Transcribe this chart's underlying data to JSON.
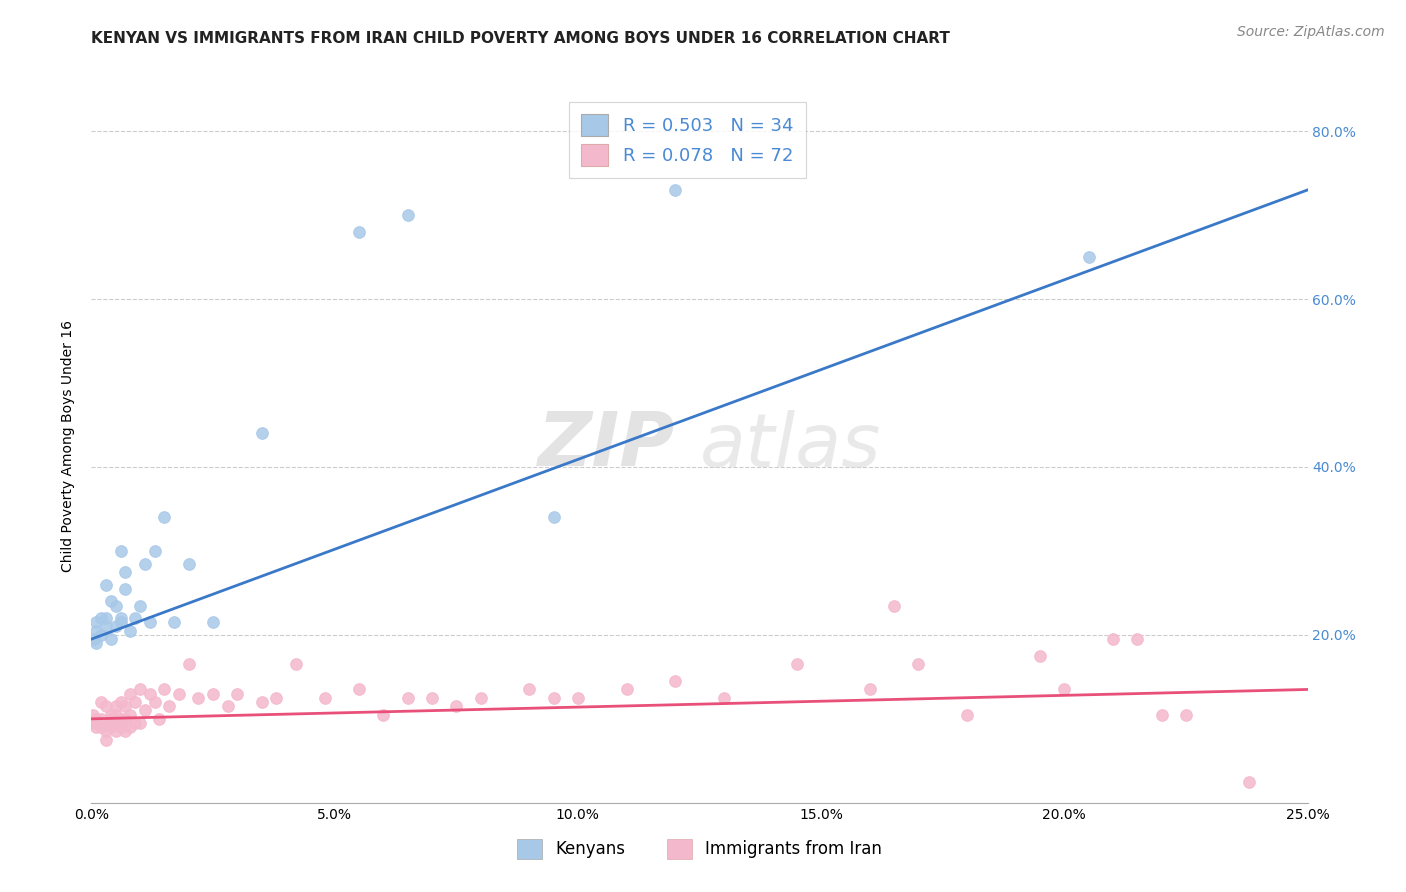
{
  "title": "KENYAN VS IMMIGRANTS FROM IRAN CHILD POVERTY AMONG BOYS UNDER 16 CORRELATION CHART",
  "source": "Source: ZipAtlas.com",
  "ylabel": "Child Poverty Among Boys Under 16",
  "xlim": [
    0.0,
    0.25
  ],
  "ylim": [
    0.0,
    0.85
  ],
  "xtick_labels": [
    "0.0%",
    "5.0%",
    "10.0%",
    "15.0%",
    "20.0%",
    "25.0%"
  ],
  "xtick_values": [
    0.0,
    0.05,
    0.1,
    0.15,
    0.2,
    0.25
  ],
  "ytick_values": [
    0.0,
    0.2,
    0.4,
    0.6,
    0.8
  ],
  "ytick_labels_right": [
    "",
    "20.0%",
    "40.0%",
    "60.0%",
    "80.0%"
  ],
  "blue_scatter_color": "#a8c8e8",
  "pink_scatter_color": "#f4b8cc",
  "blue_line_color": "#3a78c8",
  "pink_line_color": "#e8507a",
  "right_tick_color": "#4a8ad4",
  "R_blue": 0.503,
  "N_blue": 34,
  "R_pink": 0.078,
  "N_pink": 72,
  "watermark_zip": "ZIP",
  "watermark_atlas": "atlas",
  "legend_label_blue": "Kenyans",
  "legend_label_pink": "Immigrants from Iran",
  "blue_scatter_x": [
    0.0005,
    0.001,
    0.001,
    0.001,
    0.002,
    0.002,
    0.003,
    0.003,
    0.003,
    0.004,
    0.004,
    0.005,
    0.005,
    0.006,
    0.006,
    0.006,
    0.007,
    0.007,
    0.008,
    0.009,
    0.01,
    0.011,
    0.012,
    0.013,
    0.015,
    0.017,
    0.02,
    0.025,
    0.035,
    0.055,
    0.065,
    0.095,
    0.12,
    0.205
  ],
  "blue_scatter_y": [
    0.195,
    0.205,
    0.215,
    0.19,
    0.22,
    0.2,
    0.21,
    0.26,
    0.22,
    0.24,
    0.195,
    0.235,
    0.21,
    0.215,
    0.22,
    0.3,
    0.255,
    0.275,
    0.205,
    0.22,
    0.235,
    0.285,
    0.215,
    0.3,
    0.34,
    0.215,
    0.285,
    0.215,
    0.44,
    0.68,
    0.7,
    0.34,
    0.73,
    0.65
  ],
  "pink_scatter_x": [
    0.0003,
    0.0005,
    0.001,
    0.001,
    0.001,
    0.002,
    0.002,
    0.002,
    0.003,
    0.003,
    0.003,
    0.003,
    0.004,
    0.004,
    0.004,
    0.005,
    0.005,
    0.005,
    0.005,
    0.006,
    0.006,
    0.006,
    0.007,
    0.007,
    0.007,
    0.008,
    0.008,
    0.008,
    0.009,
    0.009,
    0.01,
    0.01,
    0.011,
    0.012,
    0.013,
    0.014,
    0.015,
    0.016,
    0.018,
    0.02,
    0.022,
    0.025,
    0.028,
    0.03,
    0.035,
    0.038,
    0.042,
    0.048,
    0.055,
    0.06,
    0.065,
    0.07,
    0.075,
    0.08,
    0.09,
    0.095,
    0.1,
    0.11,
    0.12,
    0.13,
    0.145,
    0.16,
    0.17,
    0.18,
    0.195,
    0.2,
    0.21,
    0.215,
    0.22,
    0.225,
    0.165,
    0.238
  ],
  "pink_scatter_y": [
    0.105,
    0.095,
    0.1,
    0.095,
    0.09,
    0.12,
    0.1,
    0.09,
    0.115,
    0.095,
    0.085,
    0.075,
    0.105,
    0.1,
    0.09,
    0.115,
    0.105,
    0.095,
    0.085,
    0.12,
    0.1,
    0.09,
    0.115,
    0.1,
    0.085,
    0.13,
    0.105,
    0.09,
    0.12,
    0.095,
    0.135,
    0.095,
    0.11,
    0.13,
    0.12,
    0.1,
    0.135,
    0.115,
    0.13,
    0.165,
    0.125,
    0.13,
    0.115,
    0.13,
    0.12,
    0.125,
    0.165,
    0.125,
    0.135,
    0.105,
    0.125,
    0.125,
    0.115,
    0.125,
    0.135,
    0.125,
    0.125,
    0.135,
    0.145,
    0.125,
    0.165,
    0.135,
    0.165,
    0.105,
    0.175,
    0.135,
    0.195,
    0.195,
    0.105,
    0.105,
    0.235,
    0.025
  ],
  "blue_trendline_x0": 0.0,
  "blue_trendline_y0": 0.195,
  "blue_trendline_x1": 0.25,
  "blue_trendline_y1": 0.73,
  "pink_trendline_x0": 0.0,
  "pink_trendline_y0": 0.1,
  "pink_trendline_x1": 0.25,
  "pink_trendline_y1": 0.135,
  "title_fontsize": 11,
  "axis_label_fontsize": 10,
  "tick_fontsize": 10,
  "legend_fontsize": 13,
  "source_fontsize": 10
}
